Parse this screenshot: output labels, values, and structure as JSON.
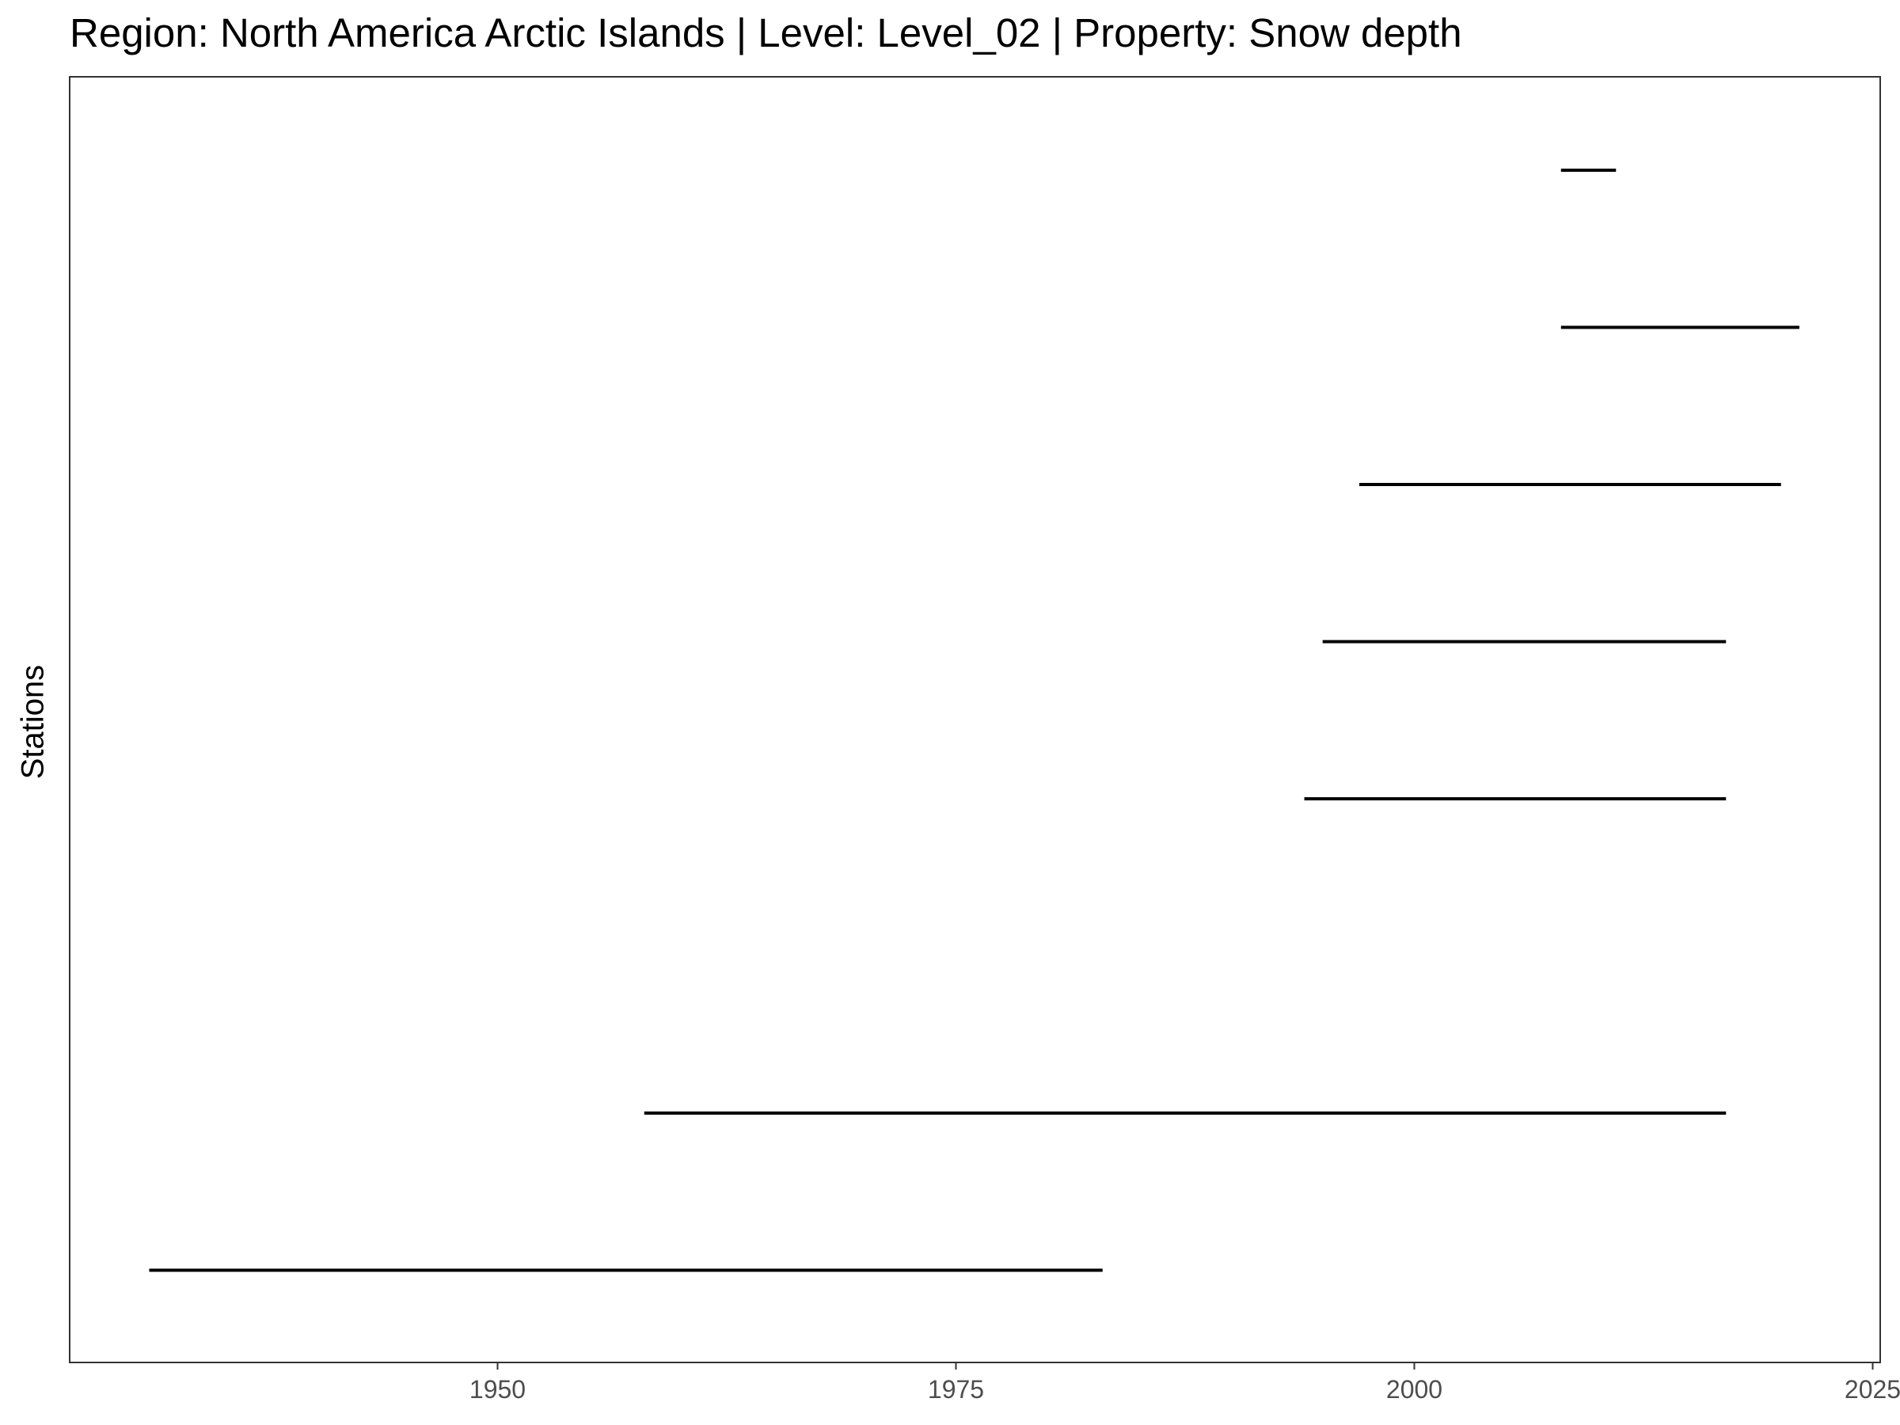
{
  "chart_data": {
    "type": "range",
    "title": "Region: North America Arctic Islands | Level: Level_02 | Property: Snow depth",
    "xlabel": "",
    "ylabel": "Stations",
    "xlim": [
      1926.5,
      2025.5
    ],
    "x_ticks": [
      1950,
      1975,
      2000,
      2025
    ],
    "grid": false,
    "ranges": [
      {
        "start": 2008.0,
        "end": 2011.0
      },
      {
        "start": 2008.0,
        "end": 2021.0
      },
      {
        "start": 1997.0,
        "end": 2020.0
      },
      {
        "start": 1995.0,
        "end": 2017.0
      },
      {
        "start": 1994.0,
        "end": 2017.0
      },
      {
        "start": 1958.0,
        "end": 2017.0
      },
      {
        "start": 1931.0,
        "end": 1983.0
      }
    ],
    "row_slots": [
      0,
      1,
      2,
      3,
      4,
      6,
      7
    ],
    "slot_count": 8,
    "line_color": "#000000"
  }
}
